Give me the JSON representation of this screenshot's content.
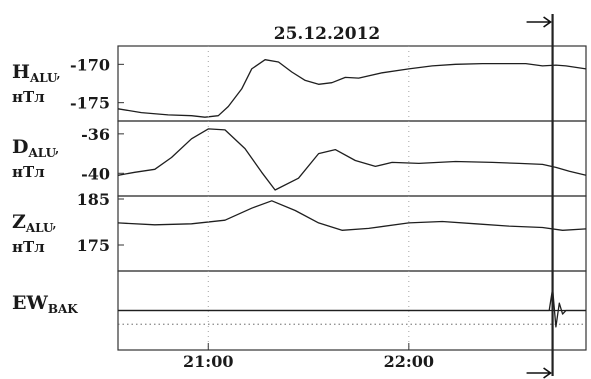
{
  "chart_data": {
    "type": "line",
    "title": "25.12.2012",
    "x_ticks": [
      "21:00",
      "22:00"
    ],
    "event_time": "22:43",
    "panels": [
      {
        "label_main": "H",
        "label_sub": "ALU",
        "label_suffix": ",",
        "label_unit": "нТл",
        "ylim": [
          -177,
          -168
        ],
        "y_ticks": [
          -170,
          -175
        ],
        "x": [
          "20:33",
          "20:40",
          "20:48",
          "20:55",
          "20:59",
          "21:03",
          "21:06",
          "21:10",
          "21:13",
          "21:17",
          "21:21",
          "21:25",
          "21:29",
          "21:33",
          "21:37",
          "21:41",
          "21:45",
          "21:52",
          "22:00",
          "22:07",
          "22:14",
          "22:22",
          "22:29",
          "22:35",
          "22:40",
          "22:44",
          "22:47",
          "22:53"
        ],
        "values": [
          -175.8,
          -176.3,
          -176.6,
          -176.7,
          -176.9,
          -176.7,
          -175.5,
          -173.2,
          -170.6,
          -169.4,
          -169.7,
          -171.0,
          -172.1,
          -172.6,
          -172.4,
          -171.7,
          -171.8,
          -171.1,
          -170.6,
          -170.2,
          -170.0,
          -169.9,
          -169.9,
          -169.9,
          -170.2,
          -170.1,
          -170.2,
          -170.6
        ]
      },
      {
        "label_main": "D",
        "label_sub": "ALU",
        "label_suffix": ",",
        "label_unit": "нТл",
        "ylim": [
          -42,
          -35
        ],
        "y_ticks": [
          -36,
          -40
        ],
        "x": [
          "20:33",
          "20:38",
          "20:44",
          "20:49",
          "20:55",
          "21:00",
          "21:05",
          "21:11",
          "21:16",
          "21:20",
          "21:27",
          "21:33",
          "21:38",
          "21:44",
          "21:50",
          "21:55",
          "22:03",
          "22:14",
          "22:25",
          "22:33",
          "22:40",
          "22:44",
          "22:48",
          "22:53"
        ],
        "values": [
          -40.2,
          -39.9,
          -39.6,
          -38.4,
          -36.5,
          -35.5,
          -35.6,
          -37.5,
          -39.9,
          -41.7,
          -40.5,
          -38.0,
          -37.6,
          -38.7,
          -39.3,
          -38.9,
          -39.0,
          -38.8,
          -38.9,
          -39.0,
          -39.1,
          -39.4,
          -39.8,
          -40.2
        ]
      },
      {
        "label_main": "Z",
        "label_sub": "ALU",
        "label_suffix": ",",
        "label_unit": "нТл",
        "ylim": [
          170,
          185
        ],
        "y_ticks": [
          185,
          175
        ],
        "x": [
          "20:33",
          "20:44",
          "20:55",
          "21:05",
          "21:13",
          "21:19",
          "21:26",
          "21:33",
          "21:40",
          "21:48",
          "22:00",
          "22:10",
          "22:20",
          "22:30",
          "22:40",
          "22:46",
          "22:53"
        ],
        "values": [
          179.8,
          179.4,
          179.6,
          180.4,
          183.0,
          184.6,
          182.5,
          179.8,
          178.2,
          178.6,
          179.8,
          180.1,
          179.6,
          179.1,
          178.8,
          178.2,
          178.5
        ]
      },
      {
        "label_main": "EW",
        "label_sub": "BAK",
        "label_suffix": "",
        "label_unit": "",
        "ylim": [
          -2,
          2
        ],
        "y_ticks": [],
        "x": [
          "20:33",
          "22:42",
          "22:43",
          "22:44",
          "22:45",
          "22:46",
          "22:47",
          "22:53"
        ],
        "values": [
          0,
          0,
          1.2,
          -0.9,
          0.4,
          -0.2,
          0,
          0
        ]
      }
    ]
  }
}
